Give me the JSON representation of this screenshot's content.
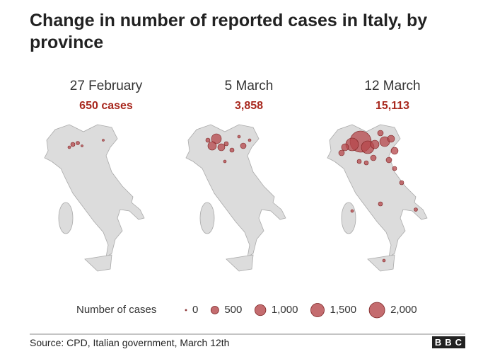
{
  "header": {
    "title": "Change in number of reported cases in Italy, by province"
  },
  "panels": [
    {
      "date": "27 February",
      "total": "650 cases"
    },
    {
      "date": "5 March",
      "total": "3,858"
    },
    {
      "date": "12 March",
      "total": "15,113"
    }
  ],
  "legend": {
    "title": "Number of cases",
    "items": [
      {
        "value": 0,
        "label": "0"
      },
      {
        "value": 500,
        "label": "500"
      },
      {
        "value": 1000,
        "label": "1,000"
      },
      {
        "value": 1500,
        "label": "1,500"
      },
      {
        "value": 2000,
        "label": "2,000"
      }
    ]
  },
  "footer": {
    "source": "Source: CPD, Italian government, March 12th",
    "logo": "BBC"
  }
}
